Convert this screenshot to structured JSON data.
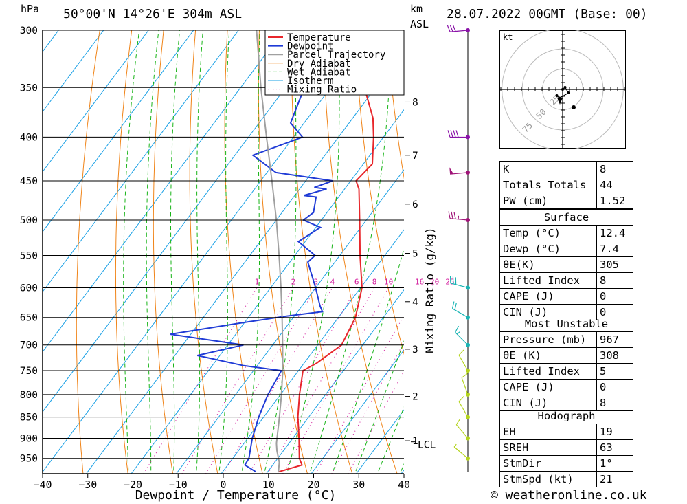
{
  "header": {
    "y_unit": "hPa",
    "location": "50°00'N 14°26'E 304m ASL",
    "km_label": "km",
    "asl_label": "ASL",
    "datetime": "28.07.2022 00GMT (Base: 00)"
  },
  "footer": {
    "copyright": "© weatheronline.co.uk"
  },
  "hodograph": {
    "unit": "kt",
    "ring_labels": [
      "25",
      "50",
      "75"
    ],
    "points": [
      [
        0,
        0
      ],
      [
        0.7,
        0.6
      ],
      [
        1.7,
        -1.0
      ],
      [
        -0.9,
        -2.5
      ],
      [
        -1.7,
        -1.8
      ]
    ]
  },
  "indices": [
    {
      "label": "K",
      "value": "8"
    },
    {
      "label": "Totals Totals",
      "value": "44"
    },
    {
      "label": "PW (cm)",
      "value": "1.52"
    }
  ],
  "surface": {
    "title": "Surface",
    "rows": [
      {
        "label": "Temp (°C)",
        "value": "12.4"
      },
      {
        "label": "Dewp (°C)",
        "value": "7.4"
      },
      {
        "label": "θE(K)",
        "value": "305"
      },
      {
        "label": "Lifted Index",
        "value": "8"
      },
      {
        "label": "CAPE (J)",
        "value": "0"
      },
      {
        "label": "CIN (J)",
        "value": "0"
      }
    ]
  },
  "most_unstable": {
    "title": "Most Unstable",
    "rows": [
      {
        "label": "Pressure (mb)",
        "value": "967"
      },
      {
        "label": "θE (K)",
        "value": "308"
      },
      {
        "label": "Lifted Index",
        "value": "5"
      },
      {
        "label": "CAPE (J)",
        "value": "0"
      },
      {
        "label": "CIN (J)",
        "value": "8"
      }
    ]
  },
  "hodograph_table": {
    "title": "Hodograph",
    "rows": [
      {
        "label": "EH",
        "value": "19"
      },
      {
        "label": "SREH",
        "value": "63"
      },
      {
        "label": "StmDir",
        "value": "1°"
      },
      {
        "label": "StmSpd (kt)",
        "value": "21"
      }
    ]
  },
  "colors": {
    "temperature": "#e8262b",
    "dewpoint": "#1f3bd6",
    "parcel": "#a0a0a0",
    "dry_adiabat": "#f08418",
    "wet_adiabat": "#18b418",
    "isotherm": "#18a0e6",
    "mixing_ratio": "#d2189b"
  },
  "chart_data": {
    "type": "line",
    "title": "",
    "xlabel": "Dewpoint / Temperature (°C)",
    "ylabel": "hPa",
    "right_axis_label": "Mixing Ratio (g/kg)",
    "xlim": [
      -40,
      40
    ],
    "ylim": [
      990,
      300
    ],
    "x_scale": "skew-T",
    "y_scale": "log",
    "grid": true,
    "legend_position": "top-right",
    "x_ticks": [
      "−40",
      "−30",
      "−20",
      "−10",
      "0",
      "10",
      "20",
      "30",
      "40"
    ],
    "pressure_ticks": [
      "300",
      "350",
      "400",
      "450",
      "500",
      "550",
      "600",
      "650",
      "700",
      "750",
      "800",
      "850",
      "900",
      "950"
    ],
    "km_ticks": [
      {
        "label": "8",
        "p": 364
      },
      {
        "label": "7",
        "p": 420
      },
      {
        "label": "6",
        "p": 479
      },
      {
        "label": "5",
        "p": 547
      },
      {
        "label": "4",
        "p": 623
      },
      {
        "label": "3",
        "p": 708
      },
      {
        "label": "2",
        "p": 804
      },
      {
        "label": "1",
        "p": 906
      }
    ],
    "lcl": {
      "label": "LCL",
      "p": 912
    },
    "mixing_ratio_labels": [
      "1",
      "2",
      "3",
      "4",
      "6",
      "8",
      "10",
      "16",
      "20",
      "25"
    ],
    "legend": [
      "Temperature",
      "Dewpoint",
      "Parcel Trajectory",
      "Dry Adiabat",
      "Wet Adiabat",
      "Isotherm",
      "Mixing Ratio"
    ],
    "series": [
      {
        "name": "Temperature",
        "points": [
          [
            985,
            12.4
          ],
          [
            967,
            16.5
          ],
          [
            950,
            14.8
          ],
          [
            900,
            11.4
          ],
          [
            850,
            7.6
          ],
          [
            800,
            4.2
          ],
          [
            750,
            1.0
          ],
          [
            735,
            2.8
          ],
          [
            700,
            5.3
          ],
          [
            650,
            3.8
          ],
          [
            600,
            0.3
          ],
          [
            550,
            -5.5
          ],
          [
            500,
            -11.5
          ],
          [
            460,
            -16.8
          ],
          [
            450,
            -18.8
          ],
          [
            430,
            -18.0
          ],
          [
            400,
            -22.2
          ],
          [
            380,
            -25.5
          ],
          [
            350,
            -32.5
          ],
          [
            320,
            -39.8
          ],
          [
            300,
            -45.8
          ]
        ]
      },
      {
        "name": "Dewpoint",
        "points": [
          [
            985,
            7.4
          ],
          [
            967,
            3.8
          ],
          [
            950,
            3.6
          ],
          [
            900,
            1.0
          ],
          [
            850,
            -1.1
          ],
          [
            800,
            -2.8
          ],
          [
            750,
            -3.8
          ],
          [
            740,
            -13
          ],
          [
            720,
            -25
          ],
          [
            700,
            -16.5
          ],
          [
            680,
            -34.5
          ],
          [
            660,
            -21
          ],
          [
            648,
            -12
          ],
          [
            640,
            -4.5
          ],
          [
            630,
            -6
          ],
          [
            600,
            -10
          ],
          [
            560,
            -16
          ],
          [
            550,
            -15.5
          ],
          [
            530,
            -21.5
          ],
          [
            510,
            -19
          ],
          [
            500,
            -24
          ],
          [
            490,
            -23
          ],
          [
            470,
            -25
          ],
          [
            468,
            -28
          ],
          [
            460,
            -24
          ],
          [
            458,
            -27
          ],
          [
            450,
            -24
          ],
          [
            440,
            -38
          ],
          [
            420,
            -46
          ],
          [
            400,
            -38
          ],
          [
            385,
            -43
          ],
          [
            360,
            -45
          ],
          [
            330,
            -47.5
          ],
          [
            320,
            -49
          ],
          [
            300,
            -56.5
          ]
        ]
      },
      {
        "name": "Parcel Trajectory",
        "points": [
          [
            985,
            12.4
          ],
          [
            960,
            11.0
          ],
          [
            930,
            8.5
          ],
          [
            912,
            7.2
          ],
          [
            850,
            3.5
          ],
          [
            800,
            0.2
          ],
          [
            750,
            -3.5
          ],
          [
            700,
            -7.8
          ],
          [
            650,
            -12.5
          ],
          [
            600,
            -17.7
          ],
          [
            550,
            -23.5
          ],
          [
            500,
            -30
          ],
          [
            450,
            -37.5
          ],
          [
            400,
            -46
          ],
          [
            350,
            -55.5
          ],
          [
            300,
            -66
          ]
        ]
      }
    ],
    "wind_barbs": [
      {
        "p": 300,
        "dir": 265,
        "spd": 30
      },
      {
        "p": 400,
        "dir": 270,
        "spd": 40
      },
      {
        "p": 440,
        "dir": 265,
        "spd": 50
      },
      {
        "p": 500,
        "dir": 275,
        "spd": 35
      },
      {
        "p": 600,
        "dir": 285,
        "spd": 30
      },
      {
        "p": 650,
        "dir": 300,
        "spd": 20
      },
      {
        "p": 700,
        "dir": 315,
        "spd": 15
      },
      {
        "p": 750,
        "dir": 330,
        "spd": 10
      },
      {
        "p": 800,
        "dir": 340,
        "spd": 10
      },
      {
        "p": 850,
        "dir": 330,
        "spd": 10
      },
      {
        "p": 900,
        "dir": 320,
        "spd": 10
      },
      {
        "p": 950,
        "dir": 310,
        "spd": 5
      }
    ]
  }
}
